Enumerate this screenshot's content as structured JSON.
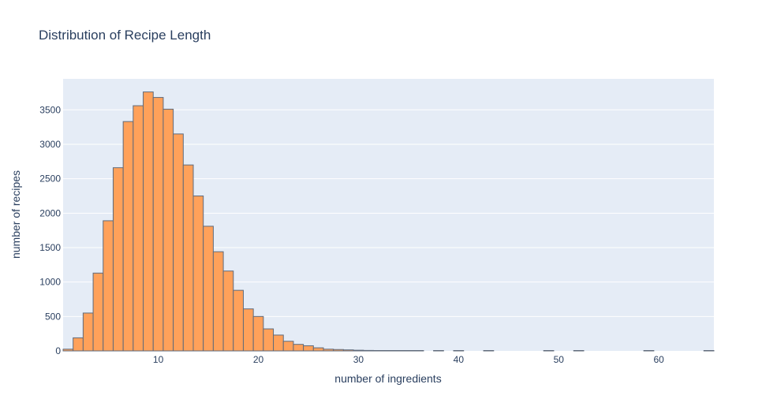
{
  "chart_data": {
    "type": "bar",
    "title": "Distribution of Recipe Length",
    "xlabel": "number of ingredients",
    "ylabel": "number of recipes",
    "xlim": [
      0.5,
      65.5
    ],
    "ylim": [
      0,
      3950
    ],
    "x_ticks": [
      10,
      20,
      30,
      40,
      50,
      60
    ],
    "y_ticks": [
      0,
      500,
      1000,
      1500,
      2000,
      2500,
      3000,
      3500
    ],
    "bin_width": 1,
    "bar_color": "#FFA15A",
    "bar_outline": "#5f6a7a",
    "plot_bg": "#E5ECF6",
    "grid": true,
    "x": [
      1,
      2,
      3,
      4,
      5,
      6,
      7,
      8,
      9,
      10,
      11,
      12,
      13,
      14,
      15,
      16,
      17,
      18,
      19,
      20,
      21,
      22,
      23,
      24,
      25,
      26,
      27,
      28,
      29,
      30,
      31,
      32,
      33,
      34,
      35,
      36,
      38,
      40,
      43,
      49,
      52,
      59,
      65
    ],
    "values": [
      25,
      190,
      550,
      1130,
      1890,
      2660,
      3330,
      3560,
      3760,
      3680,
      3510,
      3150,
      2700,
      2250,
      1810,
      1440,
      1160,
      880,
      610,
      500,
      320,
      230,
      140,
      95,
      75,
      45,
      25,
      20,
      15,
      10,
      7,
      5,
      4,
      3,
      2,
      2,
      1,
      1,
      1,
      1,
      1,
      1,
      1
    ]
  }
}
